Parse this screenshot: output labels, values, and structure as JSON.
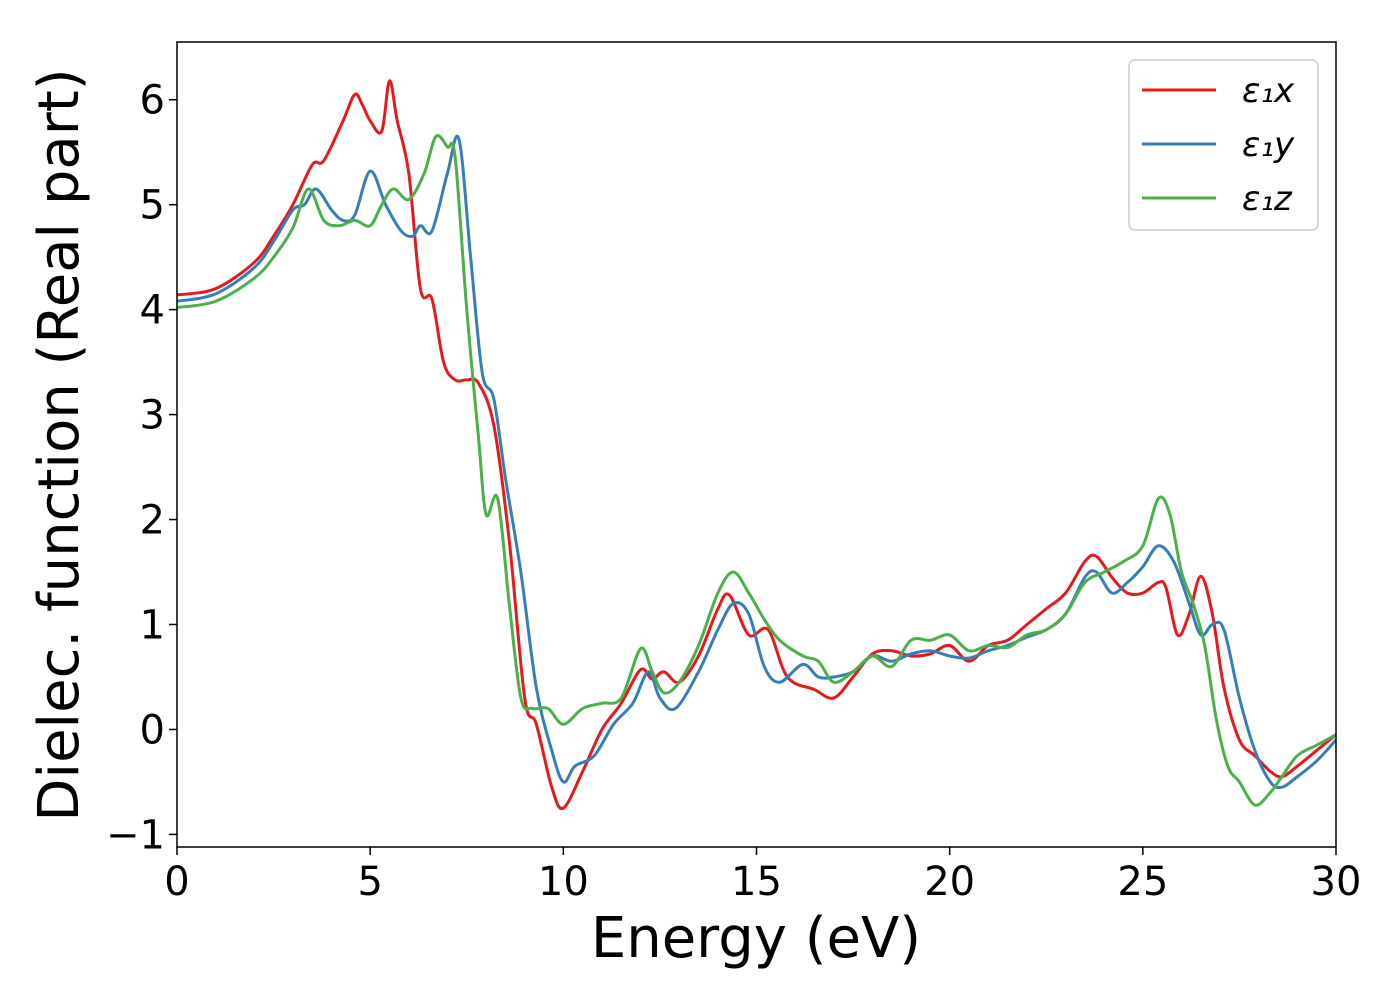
{
  "chart_data": {
    "type": "line",
    "title": "",
    "xlabel": "Energy (eV)",
    "ylabel": "Dielec. function (Real part)",
    "xlim": [
      0,
      30
    ],
    "ylim": [
      -1.12,
      6.55
    ],
    "xticks": [
      0,
      5,
      10,
      15,
      20,
      25,
      30
    ],
    "yticks": [
      -1,
      0,
      1,
      2,
      3,
      4,
      5,
      6
    ],
    "xtick_labels": [
      "0",
      "5",
      "10",
      "15",
      "20",
      "25",
      "30"
    ],
    "ytick_labels": [
      "−1",
      "0",
      "1",
      "2",
      "3",
      "4",
      "5",
      "6"
    ],
    "grid": false,
    "legend_position": "top-right",
    "series": [
      {
        "name": "ε₁x",
        "color": "#e41a1c",
        "x": [
          0,
          1,
          2,
          2.5,
          3,
          3.5,
          3.8,
          4.3,
          4.6,
          4.8,
          5.0,
          5.3,
          5.5,
          5.7,
          6.0,
          6.3,
          6.6,
          6.9,
          7.2,
          7.5,
          7.8,
          8.2,
          8.6,
          9.0,
          9.3,
          9.7,
          10.0,
          10.5,
          11.0,
          11.5,
          12.0,
          12.3,
          12.6,
          13.0,
          13.5,
          14.0,
          14.3,
          14.8,
          15.3,
          15.8,
          16.5,
          17.0,
          17.5,
          18.0,
          18.5,
          19.0,
          19.5,
          20.0,
          20.5,
          21.0,
          21.5,
          22.0,
          22.5,
          23.0,
          23.5,
          23.8,
          24.2,
          24.6,
          25.0,
          25.4,
          25.6,
          25.9,
          26.2,
          26.5,
          26.8,
          27.1,
          27.5,
          27.9,
          28.3,
          28.6,
          29.0,
          29.5,
          30.0
        ],
        "y": [
          4.14,
          4.2,
          4.45,
          4.7,
          5.0,
          5.38,
          5.42,
          5.8,
          6.05,
          5.95,
          5.8,
          5.7,
          6.18,
          5.8,
          5.3,
          4.2,
          4.1,
          3.5,
          3.33,
          3.33,
          3.3,
          2.9,
          1.8,
          0.3,
          0.05,
          -0.55,
          -0.75,
          -0.4,
          0.0,
          0.25,
          0.57,
          0.48,
          0.55,
          0.45,
          0.7,
          1.15,
          1.28,
          0.9,
          0.95,
          0.5,
          0.38,
          0.3,
          0.5,
          0.72,
          0.75,
          0.7,
          0.72,
          0.8,
          0.65,
          0.8,
          0.85,
          1.0,
          1.15,
          1.3,
          1.6,
          1.65,
          1.45,
          1.3,
          1.3,
          1.4,
          1.35,
          0.9,
          1.1,
          1.46,
          1.1,
          0.4,
          -0.1,
          -0.25,
          -0.4,
          -0.45,
          -0.35,
          -0.2,
          -0.05
        ]
      },
      {
        "name": "ε₁y",
        "color": "#377eb8",
        "x": [
          0,
          1,
          2,
          2.5,
          3,
          3.3,
          3.6,
          4.0,
          4.3,
          4.6,
          5.0,
          5.4,
          5.8,
          6.1,
          6.3,
          6.6,
          7.0,
          7.3,
          7.6,
          7.9,
          8.2,
          8.5,
          8.9,
          9.3,
          9.7,
          10.0,
          10.3,
          10.8,
          11.3,
          11.8,
          12.2,
          12.5,
          12.9,
          13.5,
          14.0,
          14.4,
          14.8,
          15.2,
          15.6,
          16.2,
          16.6,
          17.0,
          17.5,
          18.0,
          18.5,
          19.0,
          19.5,
          20.0,
          20.5,
          21.0,
          21.5,
          22.0,
          22.5,
          23.0,
          23.5,
          23.8,
          24.2,
          24.6,
          25.0,
          25.4,
          25.8,
          26.2,
          26.5,
          26.8,
          27.1,
          27.5,
          27.9,
          28.3,
          28.6,
          29.0,
          29.5,
          30.0
        ],
        "y": [
          4.08,
          4.15,
          4.4,
          4.65,
          4.95,
          5.0,
          5.15,
          4.95,
          4.85,
          4.9,
          5.32,
          5.0,
          4.75,
          4.7,
          4.8,
          4.75,
          5.3,
          5.62,
          4.5,
          3.4,
          3.15,
          2.4,
          1.5,
          0.4,
          -0.2,
          -0.5,
          -0.35,
          -0.25,
          0.05,
          0.25,
          0.55,
          0.3,
          0.2,
          0.55,
          0.95,
          1.2,
          1.1,
          0.6,
          0.45,
          0.62,
          0.5,
          0.5,
          0.55,
          0.7,
          0.65,
          0.72,
          0.75,
          0.7,
          0.68,
          0.75,
          0.8,
          0.88,
          0.95,
          1.1,
          1.45,
          1.5,
          1.3,
          1.4,
          1.55,
          1.75,
          1.6,
          1.2,
          0.9,
          1.0,
          0.95,
          0.3,
          -0.2,
          -0.5,
          -0.55,
          -0.45,
          -0.3,
          -0.1
        ]
      },
      {
        "name": "ε₁z",
        "color": "#4daf4a",
        "x": [
          0,
          1,
          2,
          2.5,
          3,
          3.4,
          3.8,
          4.2,
          4.6,
          5.0,
          5.3,
          5.6,
          6.0,
          6.4,
          6.7,
          7.0,
          7.2,
          7.5,
          7.8,
          8.0,
          8.3,
          8.6,
          8.9,
          9.2,
          9.6,
          10.0,
          10.5,
          11.0,
          11.5,
          12.0,
          12.3,
          12.6,
          13.0,
          13.5,
          14.0,
          14.4,
          14.8,
          15.2,
          15.6,
          16.2,
          16.6,
          17.0,
          17.5,
          18.0,
          18.5,
          19.0,
          19.5,
          20.0,
          20.5,
          21.0,
          21.5,
          22.0,
          22.5,
          23.0,
          23.5,
          24.0,
          24.5,
          25.0,
          25.4,
          25.7,
          26.0,
          26.3,
          26.6,
          26.9,
          27.2,
          27.5,
          27.9,
          28.3,
          28.6,
          29.0,
          29.5,
          30.0
        ],
        "y": [
          4.02,
          4.08,
          4.3,
          4.5,
          4.78,
          5.15,
          4.85,
          4.8,
          4.85,
          4.8,
          5.0,
          5.15,
          5.05,
          5.3,
          5.65,
          5.55,
          5.45,
          4.0,
          2.8,
          2.05,
          2.2,
          1.2,
          0.3,
          0.2,
          0.2,
          0.05,
          0.2,
          0.25,
          0.3,
          0.77,
          0.55,
          0.35,
          0.45,
          0.8,
          1.3,
          1.5,
          1.3,
          1.05,
          0.85,
          0.7,
          0.65,
          0.45,
          0.55,
          0.7,
          0.6,
          0.85,
          0.85,
          0.9,
          0.75,
          0.8,
          0.78,
          0.9,
          0.95,
          1.1,
          1.4,
          1.5,
          1.6,
          1.75,
          2.2,
          2.05,
          1.5,
          1.2,
          0.8,
          0.1,
          -0.35,
          -0.5,
          -0.72,
          -0.6,
          -0.45,
          -0.25,
          -0.15,
          -0.05
        ]
      }
    ]
  }
}
